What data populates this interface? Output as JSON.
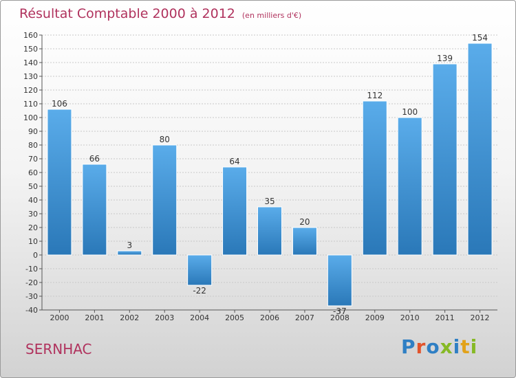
{
  "header": {
    "title": "Résultat Comptable 2000 à 2012",
    "subtitle": "(en milliers d'€)"
  },
  "footer": {
    "commune": "SERNHAC",
    "logo_text": "Proxiti",
    "logo_colors": [
      "#2f7fc4",
      "#e2532b",
      "#2f7fc4",
      "#86b925",
      "#2f7fc4",
      "#e2a21a",
      "#86b925"
    ]
  },
  "colors": {
    "title": "#b0325d",
    "bar_top": "#5aacea",
    "bar_bottom": "#2a78b8"
  },
  "chart_data": {
    "type": "bar",
    "categories": [
      "2000",
      "2001",
      "2002",
      "2003",
      "2004",
      "2005",
      "2006",
      "2007",
      "2008",
      "2009",
      "2010",
      "2011",
      "2012"
    ],
    "values": [
      106,
      66,
      3,
      80,
      -22,
      64,
      35,
      20,
      -37,
      112,
      100,
      139,
      154
    ],
    "ylim": [
      -40,
      160
    ],
    "yticks": [
      -40,
      -30,
      -20,
      -10,
      0,
      10,
      20,
      30,
      40,
      50,
      60,
      70,
      80,
      90,
      100,
      110,
      120,
      130,
      140,
      150,
      160
    ],
    "grid": true,
    "legend": "none"
  }
}
